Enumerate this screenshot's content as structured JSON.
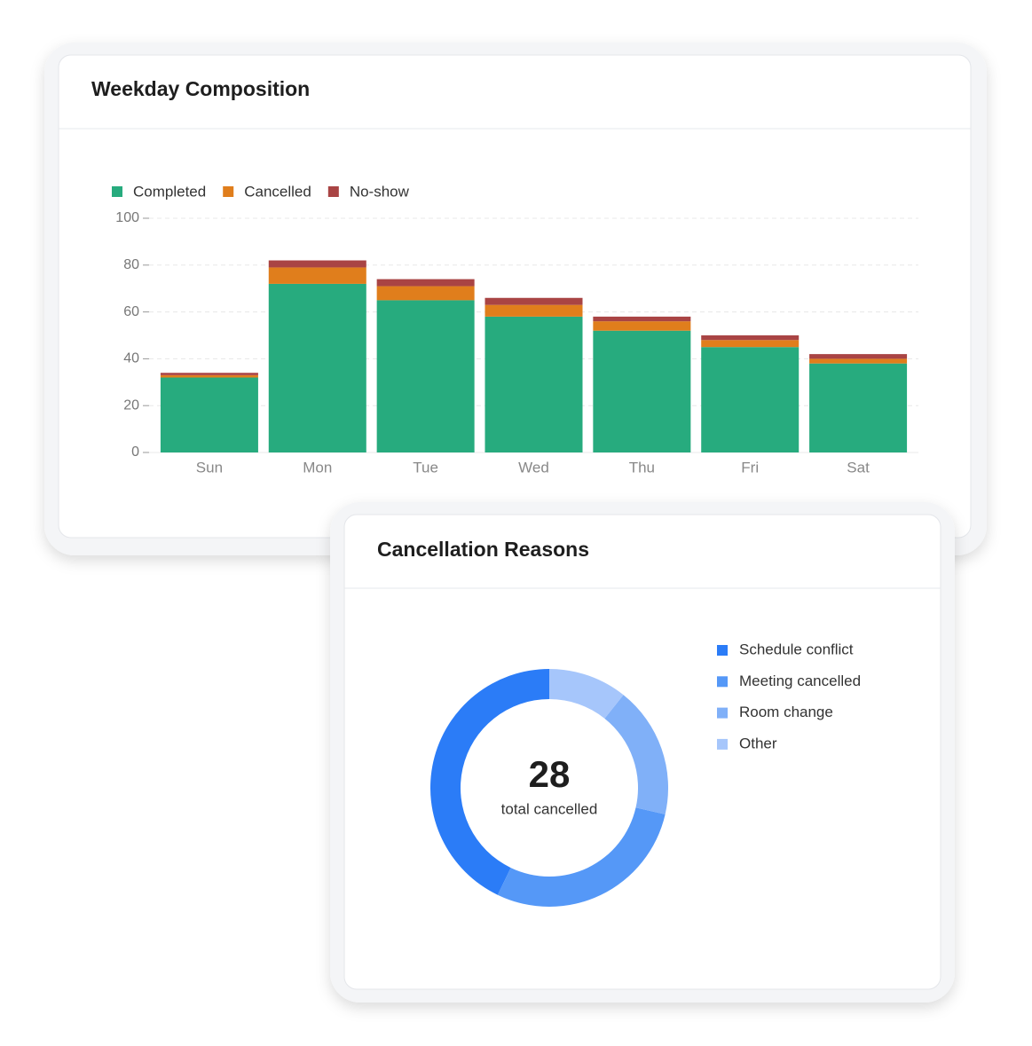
{
  "chart_data": [
    {
      "type": "bar",
      "stacked": true,
      "title": "Weekday Composition",
      "categories": [
        "Sun",
        "Mon",
        "Tue",
        "Wed",
        "Thu",
        "Fri",
        "Sat"
      ],
      "series": [
        {
          "name": "Completed",
          "color": "#27ab7e",
          "values": [
            32,
            72,
            65,
            58,
            52,
            45,
            38
          ]
        },
        {
          "name": "Cancelled",
          "color": "#e07e1c",
          "values": [
            1,
            7,
            6,
            5,
            4,
            3,
            2
          ]
        },
        {
          "name": "No-show",
          "color": "#a94444",
          "values": [
            1,
            3,
            3,
            3,
            2,
            2,
            2
          ]
        }
      ],
      "ylim": [
        0,
        100
      ],
      "yticks": [
        0,
        20,
        40,
        60,
        80,
        100
      ],
      "grid": true,
      "legend": "top-left"
    },
    {
      "type": "donut",
      "title": "Cancellation Reasons",
      "categories": [
        "Schedule conflict",
        "Meeting cancelled",
        "Room change",
        "Other"
      ],
      "values": [
        12,
        8,
        5,
        3
      ],
      "colors": [
        "#2b7cf7",
        "#5598f7",
        "#80b0f8",
        "#a6c6fb"
      ],
      "center_value": 28,
      "center_label": "total cancelled",
      "legend": "right"
    }
  ]
}
